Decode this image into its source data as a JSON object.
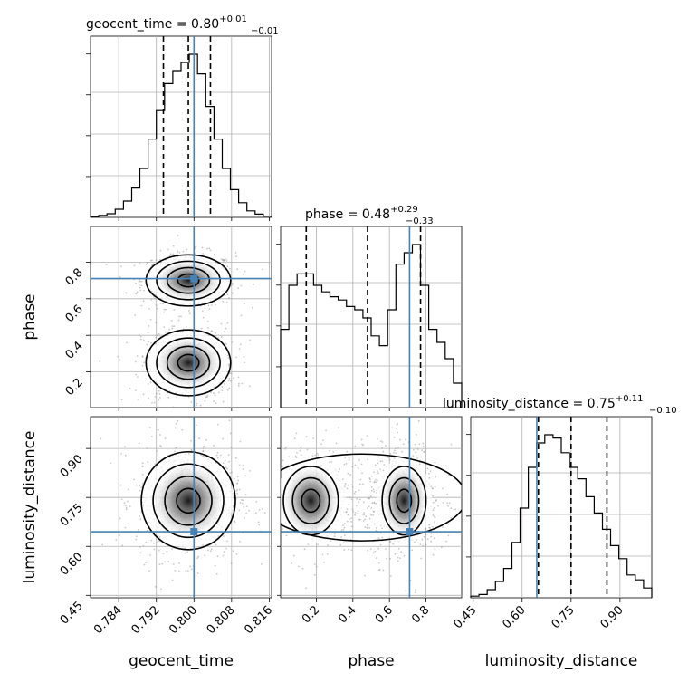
{
  "chart_data": {
    "type": "corner",
    "parameters": [
      "geocent_time",
      "phase",
      "luminosity_distance"
    ],
    "truth_color": "#4682b4",
    "truths": {
      "geocent_time": 0.8,
      "phase": 0.71,
      "luminosity_distance": 0.645
    },
    "ranges": {
      "geocent_time": [
        0.778,
        0.8165
      ],
      "phase": [
        0.005,
        0.995
      ],
      "luminosity_distance": [
        0.4425,
        0.9975
      ]
    },
    "titles": {
      "geocent_time": {
        "name": "geocent_time",
        "median": "0.80",
        "plus": "+0.01",
        "minus": "−0.01"
      },
      "phase": {
        "name": "phase",
        "median": "0.48",
        "plus": "+0.29",
        "minus": "−0.33"
      },
      "luminosity_distance": {
        "name": "luminosity_distance",
        "median": "0.75",
        "plus": "+0.11",
        "minus": "−0.10"
      }
    },
    "quantiles": {
      "geocent_time": [
        0.7935,
        0.7988,
        0.8035
      ],
      "phase": [
        0.145,
        0.48,
        0.77
      ],
      "luminosity_distance": [
        0.65,
        0.75,
        0.86
      ]
    },
    "ticks": {
      "geocent_time": [
        "0.784",
        "0.792",
        "0.800",
        "0.808",
        "0.816"
      ],
      "phase": [
        "0.2",
        "0.4",
        "0.6",
        "0.8"
      ],
      "luminosity_distance": [
        "0.45",
        "0.60",
        "0.75",
        "0.90"
      ]
    },
    "histograms": {
      "geocent_time": {
        "edges_range": [
          0.778,
          0.8165
        ],
        "counts": [
          0.5,
          1.2,
          2.2,
          5,
          10,
          18,
          30,
          48,
          66,
          82,
          90,
          95,
          100,
          88,
          68,
          48,
          30,
          17,
          9,
          4,
          2,
          0.7
        ]
      },
      "phase": {
        "edges_range": [
          0.005,
          0.995
        ],
        "counts": [
          48,
          75,
          82,
          82,
          75,
          71,
          68,
          66,
          62,
          60,
          55,
          44,
          38,
          60,
          88,
          95,
          100,
          75,
          48,
          40,
          30,
          15
        ]
      },
      "luminosity_distance": {
        "edges_range": [
          0.4425,
          0.9975
        ],
        "counts": [
          1,
          2,
          5,
          10,
          18,
          34,
          55,
          80,
          95,
          100,
          98,
          89,
          80,
          73,
          62,
          52,
          42,
          32,
          24,
          14,
          11,
          6
        ]
      }
    },
    "grid": true,
    "series": []
  }
}
